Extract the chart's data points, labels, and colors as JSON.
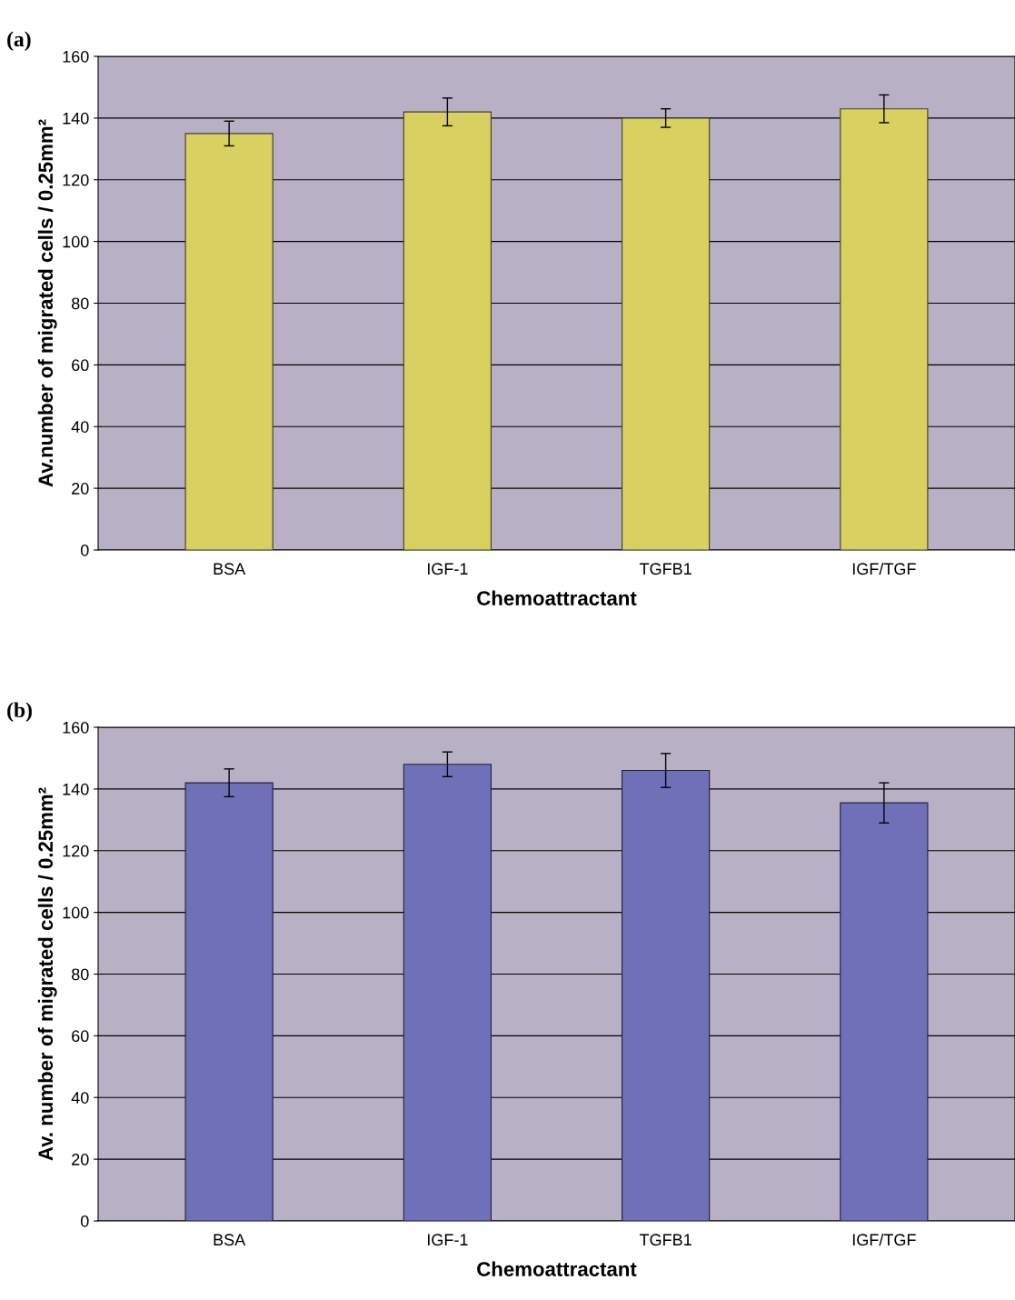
{
  "chart_data": [
    {
      "type": "bar",
      "title": "(a)",
      "xlabel": "Chemoattractant",
      "ylabel": "Av.number of migrated cells / 0.25mm²",
      "categories": [
        "BSA",
        "IGF-1",
        "TGFB1",
        "IGF/TGF"
      ],
      "values": [
        135,
        142,
        140,
        143
      ],
      "errors": [
        4,
        4.5,
        3,
        4.5
      ],
      "color": "#d8d060",
      "ylim": [
        0,
        160
      ],
      "yticks": [
        0,
        20,
        40,
        60,
        80,
        100,
        120,
        140,
        160
      ],
      "grid": "y"
    },
    {
      "type": "bar",
      "title": "(b)",
      "xlabel": "Chemoattractant",
      "ylabel": "Av. number of migrated cells / 0.25mm²",
      "categories": [
        "BSA",
        "IGF-1",
        "TGFB1",
        "IGF/TGF"
      ],
      "values": [
        142,
        148,
        146,
        135.5
      ],
      "errors": [
        4.5,
        4,
        5.5,
        6.5
      ],
      "color": "#7070b8",
      "ylim": [
        0,
        160
      ],
      "yticks": [
        0,
        20,
        40,
        60,
        80,
        100,
        120,
        140,
        160
      ],
      "grid": "y"
    }
  ]
}
